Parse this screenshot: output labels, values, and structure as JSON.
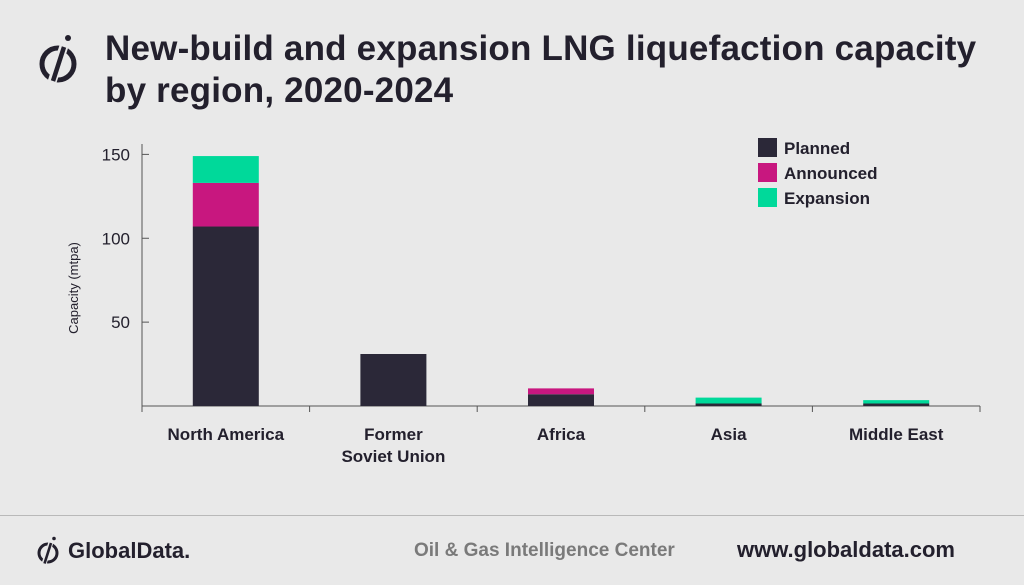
{
  "header": {
    "title": "New-build and expansion LNG liquefaction capacity by region, 2020-2024"
  },
  "chart_data": {
    "type": "bar",
    "stacked": true,
    "categories": [
      "North America",
      "Former Soviet Union",
      "Africa",
      "Asia",
      "Middle East"
    ],
    "category_lines": [
      [
        "North America"
      ],
      [
        "Former",
        "Soviet Union"
      ],
      [
        "Africa"
      ],
      [
        "Asia"
      ],
      [
        "Middle East"
      ]
    ],
    "series": [
      {
        "name": "Planned",
        "color": "#2b2838",
        "values": [
          107,
          31,
          7,
          1.5,
          1.5
        ]
      },
      {
        "name": "Announced",
        "color": "#c8177f",
        "values": [
          26,
          0,
          3.5,
          0,
          0
        ]
      },
      {
        "name": "Expansion",
        "color": "#00d99a",
        "values": [
          16,
          0,
          0,
          3.5,
          2
        ]
      }
    ],
    "ylabel": "Capacity (mtpa)",
    "xlabel": "",
    "ylim": [
      0,
      155
    ],
    "yticks": [
      50,
      100,
      150
    ],
    "grid": false,
    "legend_position": "top-right"
  },
  "footer": {
    "brand": "GlobalData.",
    "center": "Oil & Gas Intelligence Center",
    "url": "www.globaldata.com"
  }
}
